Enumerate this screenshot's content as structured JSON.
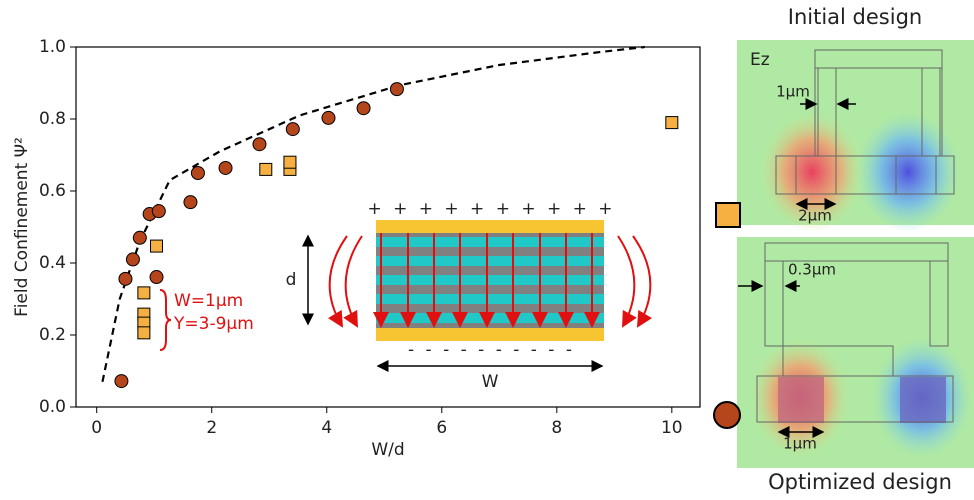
{
  "chart_data": {
    "type": "scatter",
    "x_label": "W/d",
    "y_label": "Field Confinement Ψ²",
    "xlim": [
      -0.36,
      10.49
    ],
    "ylim": [
      0,
      1
    ],
    "xticks": [
      0,
      2,
      4,
      6,
      8,
      10
    ],
    "yticks": [
      {
        "value": 0,
        "label": "0.0"
      },
      0.2,
      0.4,
      0.6,
      0.8,
      {
        "value": 1,
        "label": "1.0"
      }
    ],
    "grid": false,
    "series": [
      {
        "marker": "circle",
        "color": "#b5451b",
        "x": [
          0.43,
          0.5,
          0.63,
          0.75,
          0.92,
          1.08,
          1.04,
          1.63,
          1.76,
          2.24,
          2.83,
          3.41,
          4.03,
          4.64,
          5.22
        ],
        "values": [
          0.072,
          0.356,
          0.41,
          0.47,
          0.536,
          0.544,
          0.361,
          0.569,
          0.65,
          0.664,
          0.73,
          0.772,
          0.803,
          0.83,
          0.883
        ]
      },
      {
        "marker": "square",
        "color": "#f5b041",
        "x": [
          10.0,
          2.94,
          3.36,
          3.36,
          1.04,
          0.82,
          0.82,
          0.82,
          0.82
        ],
        "values": [
          0.79,
          0.66,
          0.66,
          0.68,
          0.447,
          0.317,
          0.258,
          0.233,
          0.206
        ]
      },
      {
        "marker": "dashed-line",
        "color": "#000000",
        "x": [
          0.1,
          0.4,
          0.75,
          1.27,
          2.14,
          3.53,
          5.27,
          7.0,
          8.75,
          9.53
        ],
        "values": [
          0.07,
          0.3,
          0.46,
          0.63,
          0.71,
          0.81,
          0.894,
          0.95,
          0.986,
          1.0
        ]
      }
    ],
    "annotations": {
      "bracket_label": [
        "W=1μm",
        "Y=3-9μm"
      ]
    },
    "inset": {
      "top_charges": "+ + + + + + + + + +",
      "bottom_charges": "- - - - - - - - - -",
      "height_label": "d",
      "width_label": "W"
    }
  },
  "panels": {
    "initial": {
      "title": "Initial design",
      "field_label": "Ez",
      "dims": [
        "1μm",
        "2μm"
      ]
    },
    "optimized": {
      "title": "Optimized design",
      "dims": [
        "0.3μm",
        "1μm"
      ]
    }
  }
}
